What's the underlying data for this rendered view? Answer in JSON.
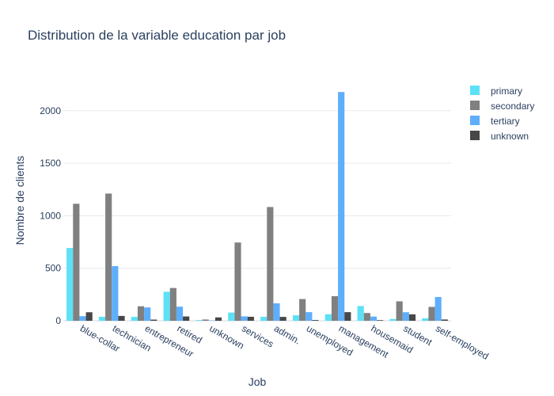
{
  "chart_data": {
    "type": "bar",
    "title": "Distribution de la variable education par job",
    "xlabel": "Job",
    "ylabel": "Nombre de clients",
    "categories": [
      "blue-collar",
      "technician",
      "entrepreneur",
      "retired",
      "unknown",
      "services",
      "admin.",
      "unemployed",
      "management",
      "housemaid",
      "student",
      "self-employed"
    ],
    "series": [
      {
        "name": "primary",
        "color": "#5ce1f7",
        "values": [
          693,
          38,
          37,
          276,
          7,
          78,
          38,
          52,
          62,
          140,
          17,
          24
        ]
      },
      {
        "name": "secondary",
        "color": "#808080",
        "values": [
          1114,
          1211,
          138,
          312,
          12,
          745,
          1083,
          207,
          234,
          74,
          185,
          132
        ]
      },
      {
        "name": "tertiary",
        "color": "#5eaefc",
        "values": [
          44,
          520,
          127,
          134,
          4,
          42,
          166,
          82,
          2178,
          40,
          81,
          226
        ]
      },
      {
        "name": "unknown",
        "color": "#474747",
        "values": [
          81,
          46,
          11,
          41,
          32,
          38,
          37,
          7,
          82,
          6,
          61,
          12
        ]
      }
    ],
    "ylim": [
      0,
      2300
    ],
    "yticks": [
      0,
      500,
      1000,
      1500,
      2000
    ],
    "grid": true,
    "legend_position": "top-right"
  }
}
